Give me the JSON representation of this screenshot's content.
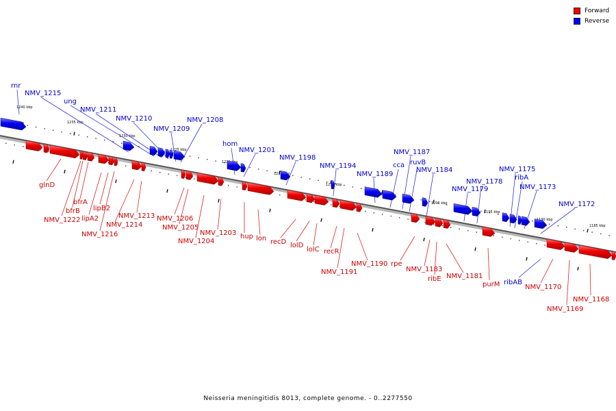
{
  "title": "Neisseria meningitidis 8013, complete genome. - 0..2277550",
  "legend": {
    "forward_label": "Forward",
    "reverse_label": "Reverse",
    "forward_color": "#ff0000",
    "reverse_color": "#0000ff"
  },
  "scale_labels": [
    "1240 kbp",
    "1235 kbp",
    "1230 kbp",
    "1225 kbp",
    "1220 kbp",
    "1215 kbp",
    "1210 kbp",
    "1205 kbp",
    "1200 kbp",
    "1195 kbp",
    "1190 kbp",
    "1185 kbp"
  ],
  "reverse_genes": [
    "rnr",
    "NMV_1215",
    "ung",
    "NMV_1211",
    "NMV_1210",
    "NMV_1209",
    "NMV_1208",
    "hom",
    "NMV_1201",
    "NMV_1198",
    "NMV_1194",
    "NMV_1189",
    "cca",
    "NMV_1187",
    "ruvB",
    "NMV_1184",
    "NMV_1179",
    "NMV_1178",
    "NMV_1175",
    "ribA",
    "NMV_1173",
    "NMV_1172",
    "ribAB"
  ],
  "forward_genes": [
    "glnD",
    "bfrB",
    "bfrA",
    "NMV_1222",
    "lipA2",
    "lipB2",
    "NMV_1216",
    "NMV_1214",
    "NMV_1213",
    "NMV_1206",
    "NMV_1205",
    "NMV_1204",
    "NMV_1203",
    "hup",
    "lon",
    "recD",
    "lolD",
    "lolC",
    "recR",
    "NMV_1191",
    "NMV_1190",
    "rpe",
    "NMV_1183",
    "ribE",
    "NMV_1181",
    "purM",
    "NMV_1170",
    "NMV_1169",
    "NMV_1168"
  ]
}
